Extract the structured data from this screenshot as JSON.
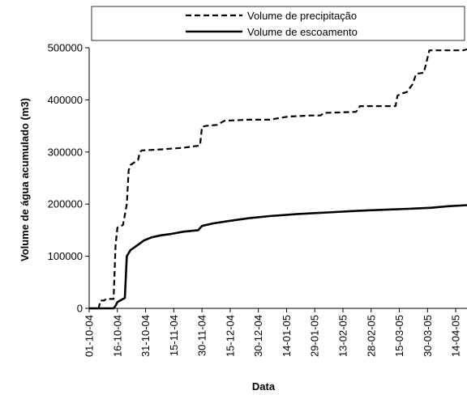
{
  "chart_data": {
    "type": "line",
    "title": "",
    "xlabel": "Data",
    "ylabel": "Volume de água acumulado (m3)",
    "ylim": [
      0,
      500000
    ],
    "yticks": [
      "0",
      "100000",
      "200000",
      "300000",
      "400000",
      "500000"
    ],
    "xlim": [
      "2004-10-01",
      "2005-04-20"
    ],
    "xticks": [
      "01-10-04",
      "16-10-04",
      "31-10-04",
      "15-11-04",
      "30-11-04",
      "15-12-04",
      "30-12-04",
      "14-01-05",
      "29-01-05",
      "13-02-05",
      "28-02-05",
      "15-03-05",
      "30-03-05",
      "14-04-05"
    ],
    "grid": false,
    "legend_position": "top",
    "series": [
      {
        "name": "Volume de precipitação",
        "line_style": "dashed",
        "color": "#000000",
        "points": [
          [
            "2004-10-01",
            0
          ],
          [
            "2004-10-06",
            0
          ],
          [
            "2004-10-07",
            15000
          ],
          [
            "2004-10-09",
            15000
          ],
          [
            "2004-10-10",
            18000
          ],
          [
            "2004-10-14",
            18000
          ],
          [
            "2004-10-15",
            120000
          ],
          [
            "2004-10-16",
            155000
          ],
          [
            "2004-10-19",
            160000
          ],
          [
            "2004-10-21",
            200000
          ],
          [
            "2004-10-22",
            265000
          ],
          [
            "2004-10-23",
            275000
          ],
          [
            "2004-10-25",
            280000
          ],
          [
            "2004-10-27",
            285000
          ],
          [
            "2004-10-28",
            300000
          ],
          [
            "2004-10-29",
            303000
          ],
          [
            "2004-11-08",
            305000
          ],
          [
            "2004-11-20",
            308000
          ],
          [
            "2004-11-28",
            312000
          ],
          [
            "2004-11-29",
            313000
          ],
          [
            "2004-11-30",
            348000
          ],
          [
            "2004-12-02",
            350000
          ],
          [
            "2004-12-08",
            352000
          ],
          [
            "2004-12-12",
            360000
          ],
          [
            "2004-12-25",
            362000
          ],
          [
            "2005-01-05",
            362000
          ],
          [
            "2005-01-10",
            365000
          ],
          [
            "2005-01-15",
            368000
          ],
          [
            "2005-01-27",
            370000
          ],
          [
            "2005-02-01",
            370000
          ],
          [
            "2005-02-03",
            375000
          ],
          [
            "2005-02-20",
            377000
          ],
          [
            "2005-02-22",
            388000
          ],
          [
            "2005-03-13",
            388000
          ],
          [
            "2005-03-14",
            408000
          ],
          [
            "2005-03-16",
            412000
          ],
          [
            "2005-03-19",
            415000
          ],
          [
            "2005-03-22",
            430000
          ],
          [
            "2005-03-24",
            450000
          ],
          [
            "2005-03-28",
            452000
          ],
          [
            "2005-03-31",
            495000
          ],
          [
            "2005-04-18",
            495000
          ],
          [
            "2005-04-20",
            497000
          ]
        ]
      },
      {
        "name": "Volume de escoamento",
        "line_style": "solid",
        "color": "#000000",
        "points": [
          [
            "2004-10-01",
            0
          ],
          [
            "2004-10-14",
            0
          ],
          [
            "2004-10-15",
            5000
          ],
          [
            "2004-10-16",
            12000
          ],
          [
            "2004-10-19",
            18000
          ],
          [
            "2004-10-20",
            20000
          ],
          [
            "2004-10-21",
            100000
          ],
          [
            "2004-10-23",
            112000
          ],
          [
            "2004-10-27",
            122000
          ],
          [
            "2004-10-30",
            130000
          ],
          [
            "2004-11-03",
            136000
          ],
          [
            "2004-11-08",
            140000
          ],
          [
            "2004-11-14",
            143000
          ],
          [
            "2004-11-20",
            147000
          ],
          [
            "2004-11-28",
            150000
          ],
          [
            "2004-11-30",
            158000
          ],
          [
            "2004-12-06",
            163000
          ],
          [
            "2004-12-15",
            168000
          ],
          [
            "2004-12-25",
            173000
          ],
          [
            "2005-01-05",
            177000
          ],
          [
            "2005-01-20",
            181000
          ],
          [
            "2005-02-05",
            184000
          ],
          [
            "2005-02-20",
            187000
          ],
          [
            "2005-03-05",
            189000
          ],
          [
            "2005-03-20",
            191000
          ],
          [
            "2005-04-01",
            193000
          ],
          [
            "2005-04-10",
            196000
          ],
          [
            "2005-04-20",
            198000
          ]
        ]
      }
    ]
  }
}
